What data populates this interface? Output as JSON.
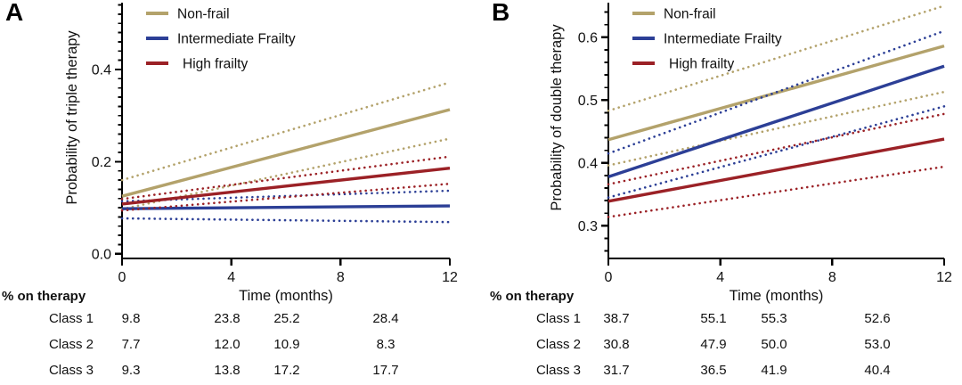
{
  "figure": {
    "panels": [
      {
        "letter": "A",
        "table": {
          "title": "% on therapy",
          "rows": [
            {
              "label": "Class 1",
              "values": [
                "9.8",
                "23.8",
                "25.2",
                "28.4"
              ]
            },
            {
              "label": "Class 2",
              "values": [
                "7.7",
                "12.0",
                "10.9",
                "8.3"
              ]
            },
            {
              "label": "Class 3",
              "values": [
                "9.3",
                "13.8",
                "17.2",
                "17.7"
              ]
            }
          ]
        }
      },
      {
        "letter": "B",
        "table": {
          "title": "% on therapy",
          "rows": [
            {
              "label": "Class 1",
              "values": [
                "38.7",
                "55.1",
                "55.3",
                "52.6"
              ]
            },
            {
              "label": "Class 2",
              "values": [
                "30.8",
                "47.9",
                "50.0",
                "53.0"
              ]
            },
            {
              "label": "Class 3",
              "values": [
                "31.7",
                "36.5",
                "41.9",
                "40.4"
              ]
            }
          ]
        }
      }
    ]
  },
  "chart_data": [
    {
      "type": "line",
      "panel": "A",
      "title": "",
      "xlabel": "Time (months)",
      "ylabel": "Probability of triple therapy",
      "x": [
        0,
        12
      ],
      "xlim": [
        0,
        12
      ],
      "xticks": [
        0,
        4,
        8,
        12
      ],
      "xtick_labels": [
        "0",
        "4",
        "8",
        "12"
      ],
      "ylim": [
        -0.01,
        0.545
      ],
      "yticks": [
        0.0,
        0.2,
        0.4
      ],
      "ytick_labels": [
        "0.0",
        "0.2",
        "0.4"
      ],
      "ytick_minor_step": 0.02,
      "grid": false,
      "legend_position": "inside-top-left",
      "series": [
        {
          "name": "Non-frail",
          "color": "#b3a26b",
          "style": "solid-with-dotted-ci",
          "values": [
            0.125,
            0.313
          ],
          "ci_upper": [
            0.16,
            0.372
          ],
          "ci_lower": [
            0.097,
            0.25
          ]
        },
        {
          "name": "Intermediate Frailty",
          "color": "#2c3f96",
          "style": "solid-with-dotted-ci",
          "values": [
            0.098,
            0.104
          ],
          "ci_upper": [
            0.114,
            0.137
          ],
          "ci_lower": [
            0.077,
            0.069
          ]
        },
        {
          "name": "High frailty",
          "color": "#9b2126",
          "style": "solid-with-dotted-ci",
          "values": [
            0.108,
            0.186
          ],
          "ci_upper": [
            0.119,
            0.211
          ],
          "ci_lower": [
            0.094,
            0.152
          ]
        }
      ]
    },
    {
      "type": "line",
      "panel": "B",
      "title": "",
      "xlabel": "Time (months)",
      "ylabel": "Probability of double therapy",
      "x": [
        0,
        12
      ],
      "xlim": [
        0,
        12
      ],
      "xticks": [
        0,
        4,
        8,
        12
      ],
      "xtick_labels": [
        "0",
        "4",
        "8",
        "12"
      ],
      "ylim": [
        0.248,
        0.655
      ],
      "yticks": [
        0.3,
        0.4,
        0.5,
        0.6
      ],
      "ytick_labels": [
        "0.3",
        "0.4",
        "0.5",
        "0.6"
      ],
      "ytick_minor_step": 0.02,
      "grid": false,
      "legend_position": "inside-top-left",
      "series": [
        {
          "name": "Non-frail",
          "color": "#b3a26b",
          "style": "solid-with-dotted-ci",
          "values": [
            0.437,
            0.586
          ],
          "ci_upper": [
            0.483,
            0.65
          ],
          "ci_lower": [
            0.396,
            0.513
          ]
        },
        {
          "name": "Intermediate Frailty",
          "color": "#2c3f96",
          "style": "solid-with-dotted-ci",
          "values": [
            0.378,
            0.554
          ],
          "ci_upper": [
            0.415,
            0.61
          ],
          "ci_lower": [
            0.345,
            0.49
          ]
        },
        {
          "name": "High frailty",
          "color": "#9b2126",
          "style": "solid-with-dotted-ci",
          "values": [
            0.339,
            0.438
          ],
          "ci_upper": [
            0.366,
            0.478
          ],
          "ci_lower": [
            0.314,
            0.394
          ]
        }
      ]
    }
  ]
}
